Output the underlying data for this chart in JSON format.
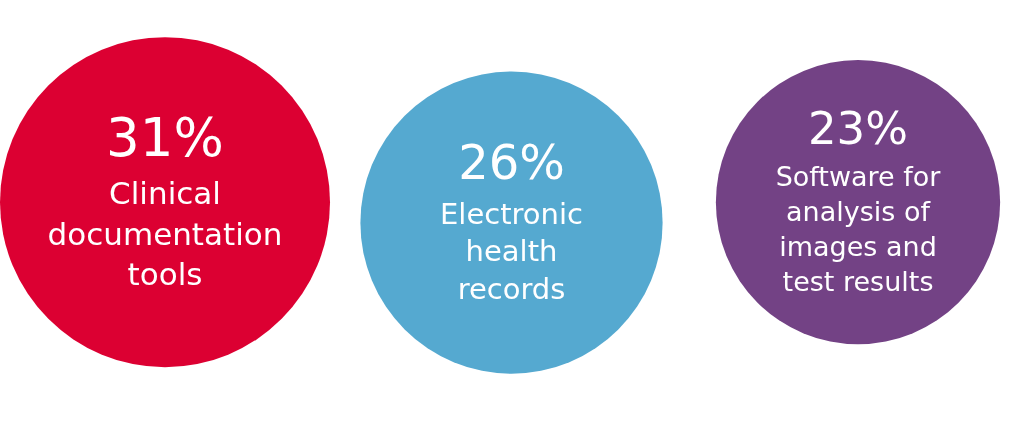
{
  "chart_data": {
    "type": "other",
    "categories": [
      "Clinical documentation tools",
      "Electronic health records",
      "Software for analysis of images and test results"
    ],
    "values": [
      31,
      26,
      23
    ],
    "value_labels": [
      "31%",
      "26%",
      "23%"
    ],
    "colors": [
      "#dc0032",
      "#55a9d0",
      "#734285"
    ],
    "data_labels": true
  }
}
